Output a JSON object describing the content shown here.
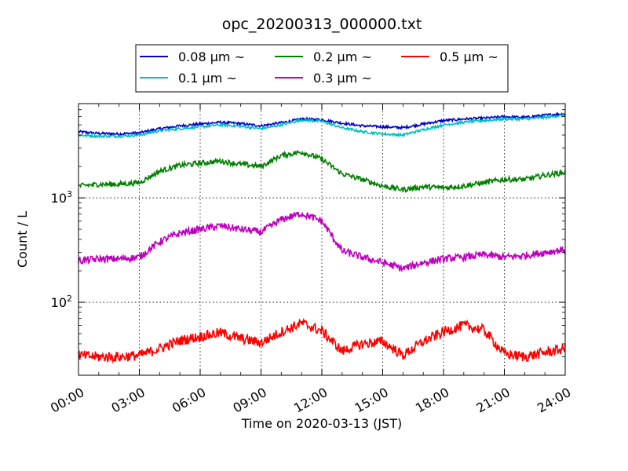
{
  "chart_data": {
    "type": "line",
    "title": "opc_20200313_000000.txt",
    "xlabel": "Time on 2020-03-13 (JST)",
    "ylabel": "Count / L",
    "y_scale": "log",
    "xlim": [
      "00:00",
      "24:00"
    ],
    "ylim": [
      20,
      8000
    ],
    "grid": true,
    "legend_position": "top-center",
    "x_ticks": [
      "00:00",
      "03:00",
      "06:00",
      "09:00",
      "12:00",
      "15:00",
      "18:00",
      "21:00",
      "24:00"
    ],
    "y_ticks": [
      {
        "value": 100,
        "base": "10",
        "exp": "2"
      },
      {
        "value": 1000,
        "base": "10",
        "exp": "3"
      }
    ],
    "x": [
      "00:00",
      "01:00",
      "02:00",
      "03:00",
      "04:00",
      "05:00",
      "06:00",
      "07:00",
      "08:00",
      "09:00",
      "10:00",
      "11:00",
      "12:00",
      "13:00",
      "14:00",
      "15:00",
      "16:00",
      "17:00",
      "18:00",
      "19:00",
      "20:00",
      "21:00",
      "22:00",
      "23:00",
      "24:00"
    ],
    "series": [
      {
        "name": "0.08 μm ~",
        "color": "#0000cc",
        "values": [
          4300,
          4150,
          4100,
          4200,
          4600,
          4900,
          5100,
          5300,
          5150,
          4900,
          5250,
          5700,
          5600,
          5200,
          4900,
          4800,
          4700,
          5100,
          5500,
          5700,
          5800,
          6000,
          5900,
          6200,
          6400
        ]
      },
      {
        "name": "0.1 μm ~",
        "color": "#00bfbf",
        "values": [
          4000,
          3900,
          3900,
          4000,
          4400,
          4600,
          4800,
          5000,
          4850,
          4600,
          5000,
          5600,
          5400,
          4700,
          4300,
          4100,
          4000,
          4500,
          5000,
          5300,
          5500,
          5700,
          5700,
          5900,
          6200
        ]
      },
      {
        "name": "0.2 μm ~",
        "color": "#008000",
        "values": [
          1300,
          1350,
          1350,
          1400,
          1800,
          2050,
          2150,
          2250,
          2100,
          2000,
          2550,
          2750,
          2350,
          1700,
          1500,
          1300,
          1200,
          1280,
          1250,
          1300,
          1400,
          1500,
          1500,
          1650,
          1750
        ]
      },
      {
        "name": "0.3 μm ~",
        "color": "#bf00bf",
        "values": [
          250,
          260,
          260,
          270,
          380,
          460,
          500,
          540,
          500,
          470,
          620,
          710,
          600,
          310,
          270,
          240,
          210,
          240,
          260,
          270,
          285,
          270,
          280,
          300,
          320
        ]
      },
      {
        "name": "0.5 μm ~",
        "color": "#ff0000",
        "values": [
          31,
          30,
          30,
          31,
          36,
          43,
          47,
          51,
          45,
          41,
          52,
          63,
          53,
          34,
          40,
          42,
          31,
          42,
          52,
          60,
          54,
          32,
          30,
          33,
          36
        ]
      }
    ]
  }
}
